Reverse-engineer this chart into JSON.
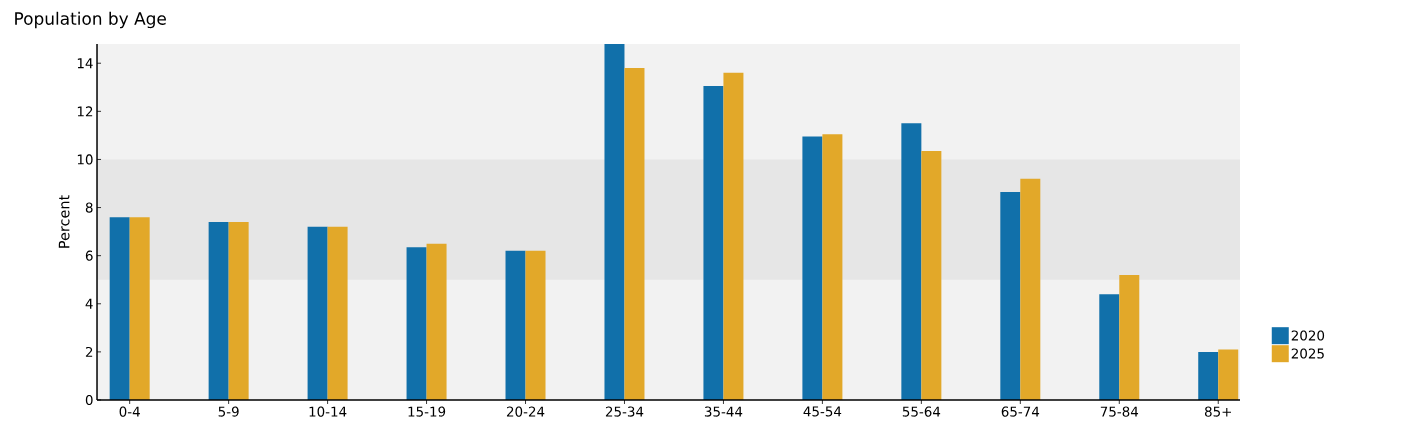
{
  "chart_data": {
    "type": "bar",
    "title": "Population by Age",
    "ylabel": "Percent",
    "categories": [
      "0-4",
      "5-9",
      "10-14",
      "15-19",
      "20-24",
      "25-34",
      "35-44",
      "45-54",
      "55-64",
      "65-74",
      "75-84",
      "85+"
    ],
    "series": [
      {
        "name": "2020",
        "color": "#1170aa",
        "values": [
          7.6,
          7.4,
          7.2,
          6.35,
          6.2,
          14.8,
          13.05,
          10.95,
          11.5,
          8.65,
          4.4,
          2.0
        ]
      },
      {
        "name": "2025",
        "color": "#e2a829",
        "values": [
          7.6,
          7.4,
          7.2,
          6.5,
          6.2,
          13.8,
          13.6,
          11.05,
          10.35,
          9.2,
          5.2,
          2.1
        ]
      }
    ],
    "ylim": [
      0,
      14.8
    ],
    "yticks": [
      0,
      2,
      4,
      6,
      8,
      10,
      12,
      14
    ],
    "bands": [
      {
        "axis": "y",
        "from": 5,
        "to": 10,
        "color": "#e6e6e6"
      }
    ],
    "legend": "right",
    "grid": false
  }
}
